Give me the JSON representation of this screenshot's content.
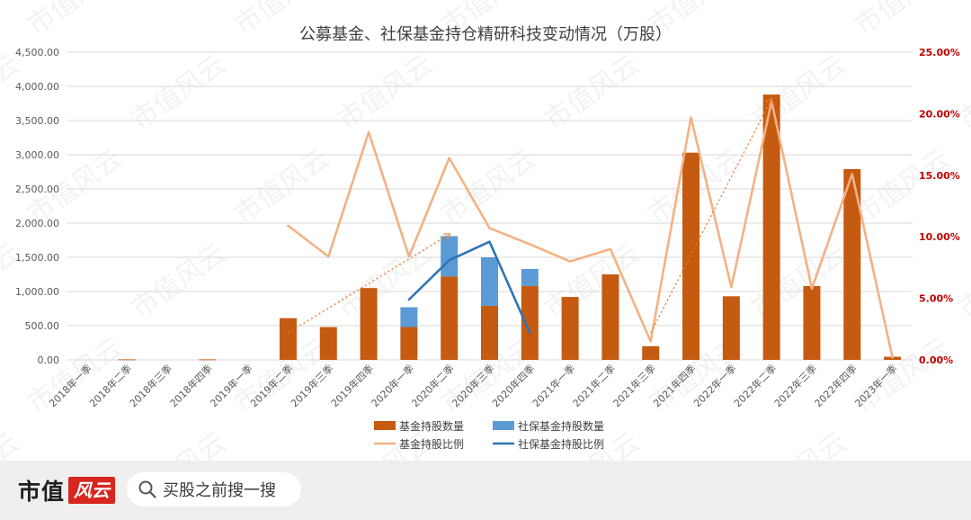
{
  "brand": {
    "name": "市值",
    "badge": "风云",
    "watermark": "市值风云"
  },
  "search": {
    "icon": "search-icon",
    "text": "买股之前搜一搜"
  },
  "colors": {
    "fund_shares": "#c55a11",
    "ssf_shares": "#5b9bd5",
    "fund_ratio": "#f4b183",
    "ssf_ratio": "#2e75b6",
    "right_axis": "#c00000",
    "trend_arrow": "#ed7d31"
  },
  "chart_data": {
    "type": "bar",
    "title": "公募基金、社保基金持仓精研科技变动情况（万股）",
    "categories": [
      "2018年一季",
      "2018年二季",
      "2018年三季",
      "2018年四季",
      "2019年一季",
      "2019年二季",
      "2019年三季",
      "2019年四季",
      "2020年一季",
      "2020年二季",
      "2020年三季",
      "2020年四季",
      "2021年一季",
      "2021年二季",
      "2021年三季",
      "2021年四季",
      "2022年一季",
      "2022年二季",
      "2022年三季",
      "2022年四季",
      "2023年一季"
    ],
    "left_axis": {
      "min": 0,
      "max": 4500,
      "step": 500,
      "tick_labels": [
        "0.00",
        "500.00",
        "1,000.00",
        "1,500.00",
        "2,000.00",
        "2,500.00",
        "3,000.00",
        "3,500.00",
        "4,000.00",
        "4,500.00"
      ]
    },
    "right_axis": {
      "min": 0,
      "max": 25,
      "step": 5,
      "tick_labels": [
        "0.00%",
        "5.00%",
        "10.00%",
        "15.00%",
        "20.00%",
        "25.00%"
      ]
    },
    "grid": "horizontal",
    "legend_position": "bottom",
    "series": [
      {
        "name": "基金持股数量",
        "kind": "bar-stacked",
        "axis": "left",
        "values": [
          null,
          8,
          null,
          8,
          null,
          610,
          480,
          1050,
          480,
          1220,
          790,
          1080,
          920,
          1250,
          200,
          3030,
          930,
          3880,
          1080,
          2790,
          45
        ]
      },
      {
        "name": "社保基金持股数量",
        "kind": "bar-stacked",
        "axis": "left",
        "values": [
          null,
          null,
          null,
          null,
          null,
          null,
          null,
          null,
          290,
          590,
          710,
          250,
          null,
          null,
          null,
          null,
          null,
          null,
          null,
          null,
          null
        ]
      },
      {
        "name": "基金持股比例",
        "kind": "line",
        "axis": "right",
        "values": [
          null,
          null,
          null,
          null,
          null,
          10.9,
          8.4,
          18.5,
          8.4,
          16.4,
          10.7,
          9.4,
          8.0,
          9.0,
          1.5,
          19.7,
          5.9,
          21.0,
          5.8,
          15.1,
          0.2
        ]
      },
      {
        "name": "社保基金持股比例",
        "kind": "line",
        "axis": "right",
        "values": [
          null,
          null,
          null,
          null,
          null,
          null,
          null,
          null,
          4.9,
          8.1,
          9.6,
          2.2,
          null,
          null,
          null,
          null,
          null,
          null,
          null,
          null,
          null
        ]
      }
    ],
    "trend_arrows": [
      {
        "from": {
          "x": "2019年二季",
          "y": 2.2
        },
        "to": {
          "x": "2020年二季",
          "y": 10.2
        }
      },
      {
        "from": {
          "x": "2021年三季",
          "y": 2.2
        },
        "to": {
          "x": "2022年二季",
          "y": 21.2
        }
      }
    ]
  }
}
